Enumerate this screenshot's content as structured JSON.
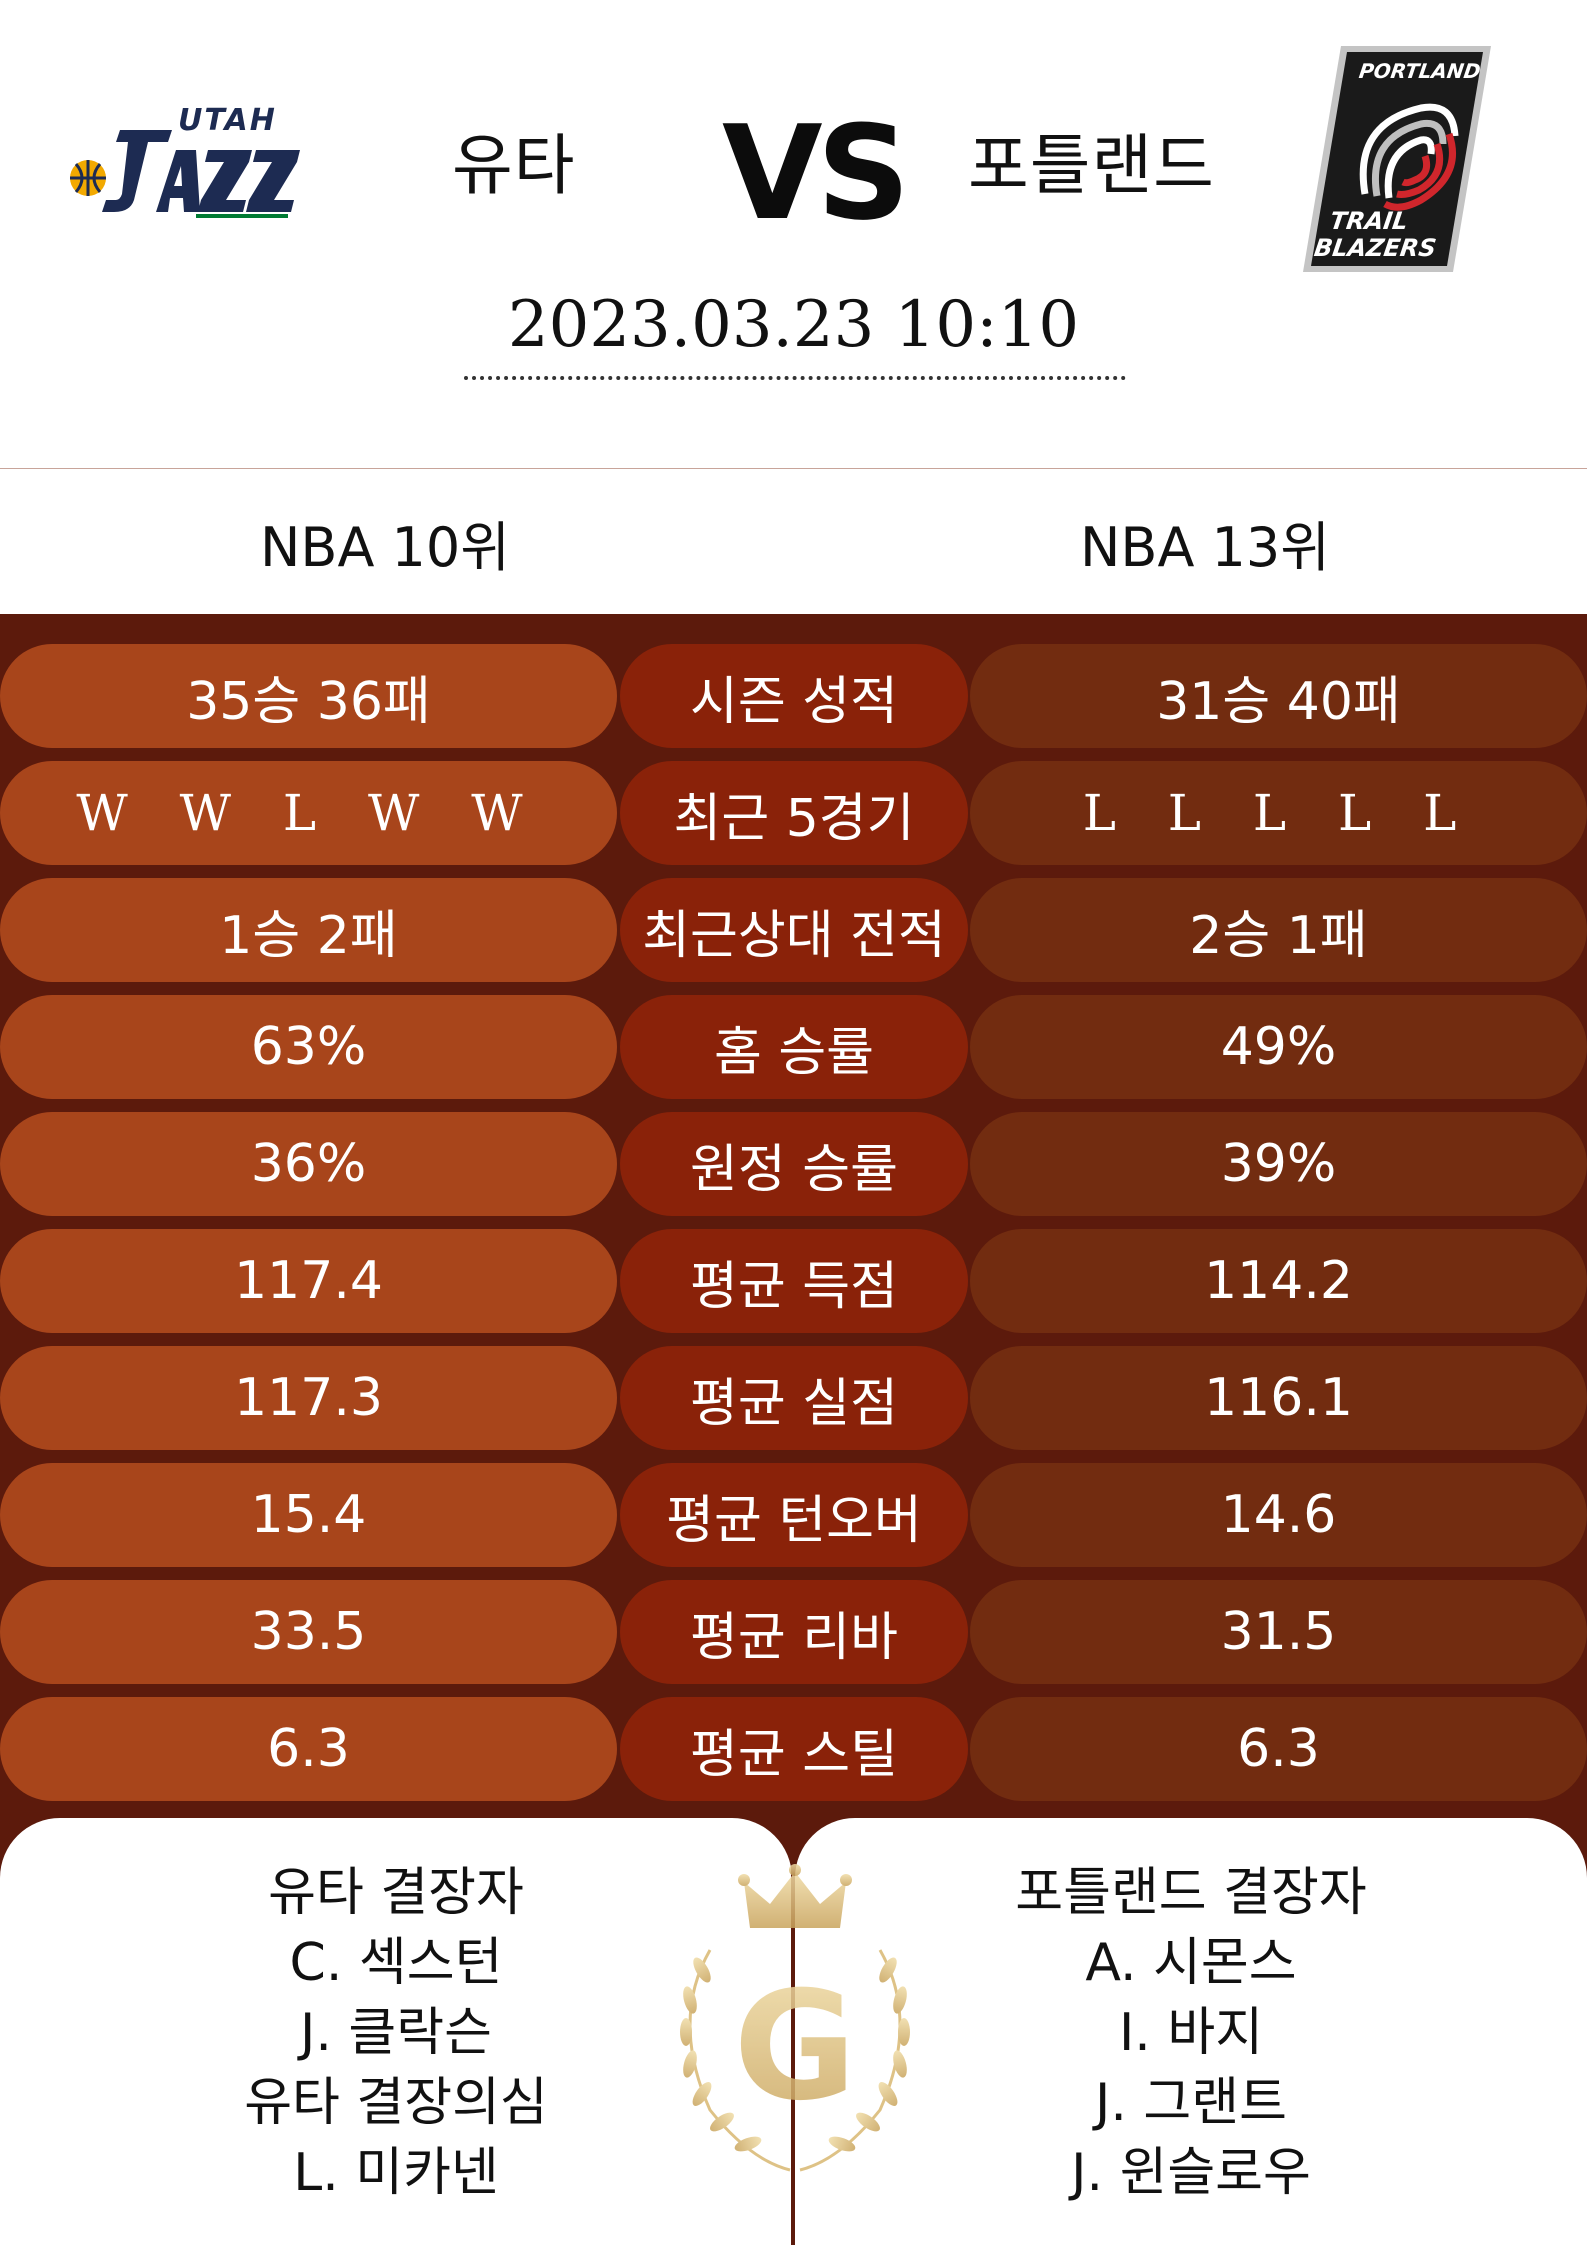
{
  "header": {
    "home_team": "유타",
    "away_team": "포틀랜드",
    "vs": "VS",
    "datetime": "2023.03.23   10:10",
    "home_logo_text": "UTAH JAZZ",
    "away_logo_text": "PORTLAND TRAIL BLAZERS"
  },
  "ranks": {
    "home": "NBA 10위",
    "away": "NBA 13위"
  },
  "stats": [
    {
      "home": "35승 36패",
      "label": "시즌 성적",
      "away": "31승 40패"
    },
    {
      "home": "W  W  L  W  W",
      "label": "최근 5경기",
      "away": "L  L  L  L  L"
    },
    {
      "home": "1승 2패",
      "label": "최근상대 전적",
      "away": "2승 1패"
    },
    {
      "home": "63%",
      "label": "홈 승률",
      "away": "49%"
    },
    {
      "home": "36%",
      "label": "원정 승률",
      "away": "39%"
    },
    {
      "home": "117.4",
      "label": "평균 득점",
      "away": "114.2"
    },
    {
      "home": "117.3",
      "label": "평균 실점",
      "away": "116.1"
    },
    {
      "home": "15.4",
      "label": "평균 턴오버",
      "away": "14.6"
    },
    {
      "home": "33.5",
      "label": "평균 리바",
      "away": "31.5"
    },
    {
      "home": "6.3",
      "label": "평균 스틸",
      "away": "6.3"
    }
  ],
  "absences": {
    "home": [
      "유타 결장자",
      "C. 섹스턴",
      "J. 클락슨",
      "유타 결장의심",
      "L. 미카넨"
    ],
    "away": [
      "포틀랜드 결장자",
      "A. 시몬스",
      "I. 바지",
      "J. 그랜트",
      "J. 윈슬로우"
    ]
  },
  "emblem_letter": "G",
  "colors": {
    "background_dark": "#5c1a0c",
    "home_pill": "#a8451b",
    "label_pill": "#8a2209",
    "away_pill": "#722c10",
    "jazz_navy": "#1d2b52",
    "jazz_gold": "#f2a900",
    "blazers_red": "#d0262c",
    "gold": "#d9b871"
  }
}
